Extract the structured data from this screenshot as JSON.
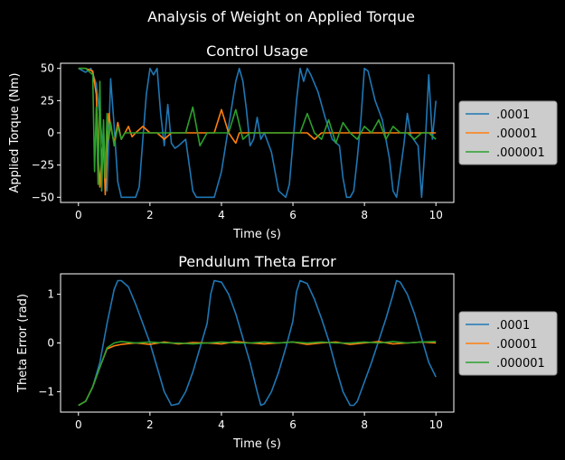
{
  "figure": {
    "suptitle": "Analysis of Weight on Applied Torque"
  },
  "colors": {
    "s1": "#1f77b4",
    "s2": "#ff7f0e",
    "s3": "#2ca02c"
  },
  "chart_data": [
    {
      "type": "line",
      "title": "Control Usage",
      "xlabel": "Time (s)",
      "ylabel": "Applied Torque (Nm)",
      "xlim": [
        -0.5,
        10.5
      ],
      "ylim": [
        -54,
        54
      ],
      "xticks": [
        0,
        2,
        4,
        6,
        8,
        10
      ],
      "yticks": [
        -50,
        -25,
        0,
        25,
        50
      ],
      "legend": "outside-right",
      "series": [
        {
          "name": ".0001",
          "x": [
            0,
            0.2,
            0.35,
            0.5,
            0.6,
            0.7,
            0.8,
            0.9,
            1.0,
            1.1,
            1.2,
            1.4,
            1.6,
            1.7,
            1.8,
            1.9,
            2.0,
            2.1,
            2.2,
            2.3,
            2.4,
            2.5,
            2.6,
            2.7,
            2.8,
            3.0,
            3.2,
            3.3,
            3.4,
            3.5,
            3.6,
            3.8,
            4.0,
            4.2,
            4.4,
            4.5,
            4.6,
            4.7,
            4.8,
            4.9,
            5.0,
            5.1,
            5.2,
            5.4,
            5.6,
            5.8,
            5.9,
            6.0,
            6.1,
            6.2,
            6.3,
            6.4,
            6.5,
            6.7,
            6.9,
            7.1,
            7.3,
            7.4,
            7.5,
            7.6,
            7.7,
            7.8,
            7.9,
            8.0,
            8.1,
            8.3,
            8.5,
            8.6,
            8.7,
            8.8,
            8.9,
            9.0,
            9.1,
            9.2,
            9.3,
            9.5,
            9.6,
            9.7,
            9.8,
            9.9,
            10.0
          ],
          "values": [
            50,
            47,
            50,
            38,
            12,
            -15,
            -45,
            42,
            5,
            -38,
            -50,
            -50,
            -50,
            -42,
            -5,
            30,
            50,
            45,
            50,
            15,
            -10,
            22,
            -8,
            -12,
            -10,
            -5,
            -45,
            -50,
            -50,
            -50,
            -50,
            -50,
            -30,
            5,
            40,
            50,
            40,
            18,
            -10,
            -5,
            12,
            -5,
            0,
            -15,
            -45,
            -50,
            -40,
            -8,
            25,
            50,
            40,
            50,
            45,
            32,
            12,
            -5,
            -10,
            -35,
            -50,
            -50,
            -45,
            -20,
            10,
            50,
            48,
            25,
            10,
            -5,
            -20,
            -45,
            -50,
            -30,
            -10,
            15,
            -2,
            -10,
            -50,
            -8,
            45,
            -5,
            25
          ]
        },
        {
          "name": ".00001",
          "x": [
            0,
            0.2,
            0.4,
            0.5,
            0.55,
            0.6,
            0.65,
            0.7,
            0.75,
            0.8,
            0.85,
            0.9,
            1.0,
            1.1,
            1.2,
            1.3,
            1.4,
            1.5,
            1.6,
            1.8,
            2.0,
            2.2,
            2.4,
            2.6,
            2.8,
            3.0,
            3.2,
            3.4,
            3.6,
            3.8,
            4.0,
            4.2,
            4.4,
            4.5,
            4.6,
            4.8,
            5.0,
            5.2,
            5.4,
            5.6,
            5.8,
            6.0,
            6.2,
            6.4,
            6.6,
            6.8,
            7.0,
            7.2,
            7.4,
            7.6,
            7.8,
            8.0,
            8.2,
            8.4,
            8.6,
            8.8,
            9.0,
            9.2,
            9.4,
            9.6,
            9.8,
            10.0
          ],
          "values": [
            50,
            50,
            48,
            30,
            -15,
            -42,
            -20,
            -5,
            -48,
            -10,
            15,
            5,
            -8,
            8,
            -5,
            0,
            5,
            -3,
            0,
            5,
            0,
            0,
            -5,
            0,
            0,
            0,
            0,
            0,
            0,
            0,
            18,
            0,
            -8,
            0,
            0,
            0,
            0,
            0,
            0,
            0,
            0,
            0,
            0,
            0,
            -5,
            0,
            0,
            0,
            0,
            0,
            0,
            0,
            0,
            0,
            0,
            0,
            0,
            0,
            0,
            0,
            0,
            0
          ]
        },
        {
          "name": ".000001",
          "x": [
            0,
            0.2,
            0.4,
            0.45,
            0.5,
            0.55,
            0.6,
            0.65,
            0.7,
            0.75,
            0.8,
            0.85,
            0.9,
            1.0,
            1.1,
            1.2,
            1.3,
            1.4,
            1.5,
            1.6,
            1.8,
            2.0,
            2.2,
            2.4,
            2.6,
            2.8,
            3.0,
            3.2,
            3.4,
            3.6,
            3.8,
            4.0,
            4.2,
            4.4,
            4.6,
            4.8,
            5.0,
            5.2,
            5.4,
            5.6,
            5.8,
            6.0,
            6.2,
            6.4,
            6.6,
            6.8,
            7.0,
            7.2,
            7.4,
            7.6,
            7.8,
            8.0,
            8.2,
            8.4,
            8.6,
            8.8,
            9.0,
            9.2,
            9.4,
            9.6,
            9.8,
            10.0
          ],
          "values": [
            50,
            50,
            45,
            -30,
            20,
            -40,
            40,
            -45,
            10,
            -35,
            15,
            -5,
            8,
            -10,
            5,
            -5,
            0,
            0,
            0,
            0,
            0,
            0,
            0,
            0,
            0,
            0,
            0,
            20,
            -10,
            0,
            0,
            0,
            0,
            18,
            -5,
            0,
            0,
            0,
            0,
            0,
            0,
            0,
            0,
            15,
            0,
            -5,
            10,
            -8,
            8,
            0,
            -5,
            5,
            0,
            10,
            -5,
            5,
            0,
            0,
            -5,
            0,
            0,
            -5
          ]
        }
      ]
    },
    {
      "type": "line",
      "title": "Pendulum Theta Error",
      "xlabel": "Time (s)",
      "ylabel": "Theta Error (rad)",
      "xlim": [
        -0.5,
        10.5
      ],
      "ylim": [
        -1.42,
        1.42
      ],
      "xticks": [
        0,
        2,
        4,
        6,
        8,
        10
      ],
      "yticks": [
        -1,
        0,
        1
      ],
      "legend": "outside-right",
      "series": [
        {
          "name": ".0001",
          "x": [
            0,
            0.2,
            0.4,
            0.6,
            0.8,
            1.0,
            1.1,
            1.2,
            1.4,
            1.6,
            1.8,
            2.0,
            2.2,
            2.4,
            2.6,
            2.8,
            3.0,
            3.2,
            3.4,
            3.6,
            3.7,
            3.8,
            4.0,
            4.2,
            4.4,
            4.6,
            4.8,
            5.0,
            5.1,
            5.2,
            5.4,
            5.6,
            5.8,
            6.0,
            6.1,
            6.2,
            6.4,
            6.6,
            6.8,
            7.0,
            7.2,
            7.4,
            7.6,
            7.7,
            7.8,
            8.0,
            8.2,
            8.4,
            8.6,
            8.8,
            8.9,
            9.0,
            9.2,
            9.4,
            9.6,
            9.8,
            10.0
          ],
          "values": [
            -1.28,
            -1.2,
            -0.9,
            -0.4,
            0.4,
            1.1,
            1.28,
            1.28,
            1.15,
            0.8,
            0.4,
            0.0,
            -0.5,
            -1.0,
            -1.28,
            -1.25,
            -1.0,
            -0.6,
            -0.1,
            0.4,
            1.0,
            1.28,
            1.25,
            1.0,
            0.6,
            0.1,
            -0.4,
            -1.0,
            -1.28,
            -1.25,
            -1.0,
            -0.6,
            -0.1,
            0.45,
            1.05,
            1.28,
            1.22,
            0.9,
            0.5,
            0.05,
            -0.5,
            -1.0,
            -1.28,
            -1.28,
            -1.2,
            -0.8,
            -0.4,
            0.05,
            0.5,
            1.0,
            1.28,
            1.25,
            1.0,
            0.6,
            0.1,
            -0.4,
            -0.7
          ]
        },
        {
          "name": ".00001",
          "x": [
            0,
            0.2,
            0.4,
            0.6,
            0.8,
            1.0,
            1.2,
            1.6,
            2.0,
            2.4,
            2.8,
            3.2,
            3.6,
            4.0,
            4.4,
            4.8,
            5.2,
            5.6,
            6.0,
            6.4,
            6.8,
            7.2,
            7.6,
            8.0,
            8.4,
            8.8,
            9.2,
            9.6,
            10.0
          ],
          "values": [
            -1.28,
            -1.2,
            -0.9,
            -0.5,
            -0.12,
            -0.06,
            -0.03,
            0.0,
            -0.03,
            0.02,
            -0.02,
            0.01,
            0.0,
            -0.02,
            0.03,
            0.0,
            -0.02,
            0.0,
            0.02,
            -0.03,
            0.0,
            0.02,
            -0.03,
            0.0,
            0.03,
            -0.02,
            0.0,
            0.02,
            0.0
          ]
        },
        {
          "name": ".000001",
          "x": [
            0,
            0.2,
            0.4,
            0.6,
            0.8,
            1.0,
            1.2,
            1.6,
            2.0,
            2.4,
            2.8,
            3.2,
            3.6,
            4.0,
            4.4,
            4.8,
            5.2,
            5.6,
            6.0,
            6.4,
            6.8,
            7.2,
            7.6,
            8.0,
            8.4,
            8.8,
            9.2,
            9.6,
            10.0
          ],
          "values": [
            -1.28,
            -1.2,
            -0.9,
            -0.5,
            -0.1,
            0.0,
            0.03,
            0.0,
            0.02,
            0.0,
            0.0,
            -0.02,
            0.0,
            0.02,
            0.0,
            0.0,
            0.02,
            0.0,
            0.02,
            0.0,
            0.02,
            0.0,
            0.0,
            0.02,
            0.0,
            0.03,
            0.0,
            0.02,
            0.03
          ]
        }
      ]
    }
  ]
}
